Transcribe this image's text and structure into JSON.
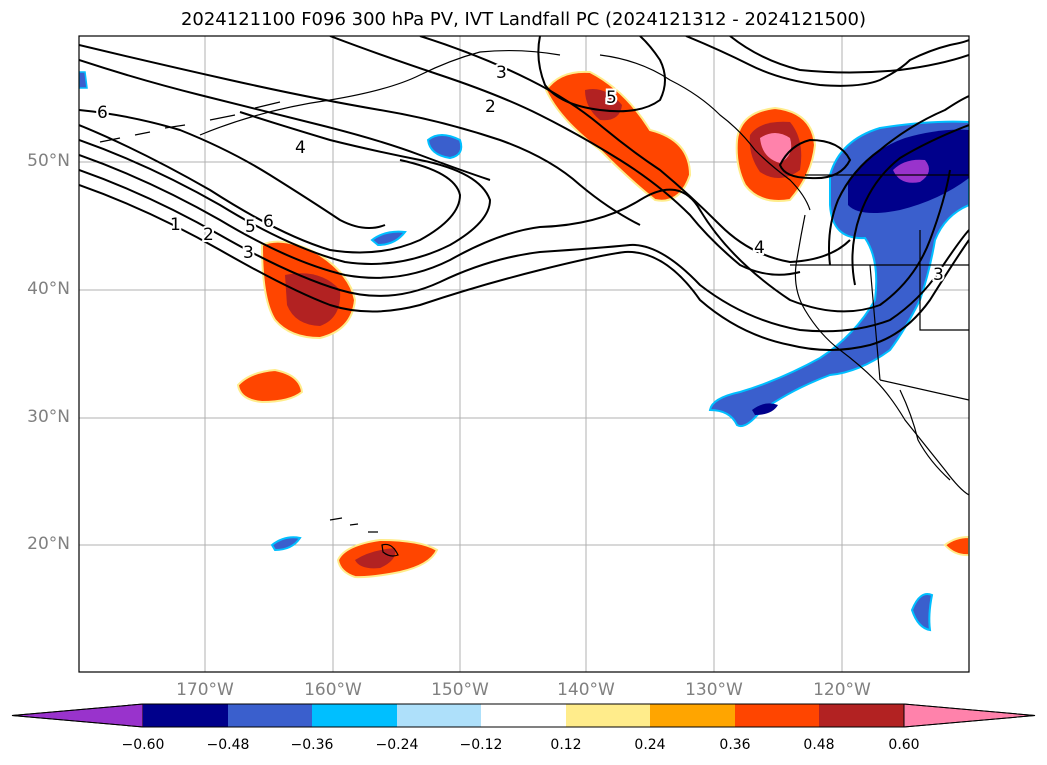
{
  "title": "2024121100 F096 300 hPa PV, IVT Landfall PC (2024121312 - 2024121500)",
  "lat_labels": [
    "50°N",
    "40°N",
    "30°N",
    "20°N"
  ],
  "lon_labels": [
    "170°W",
    "160°W",
    "150°W",
    "140°W",
    "130°W",
    "120°W"
  ],
  "contour_labels": [
    "6",
    "4",
    "1",
    "2",
    "5",
    "6",
    "3",
    "3",
    "2",
    "5",
    "4",
    "3"
  ],
  "colorbar": {
    "ticks": [
      "−0.60",
      "−0.48",
      "−0.36",
      "−0.24",
      "−0.12",
      "0.12",
      "0.24",
      "0.36",
      "0.48",
      "0.60"
    ],
    "colors": [
      "#9933cc",
      "#00008b",
      "#3a5fcd",
      "#00bfff",
      "#aee0fa",
      "#ffffff",
      "#ffec8b",
      "#ffa500",
      "#ff4500",
      "#b22222",
      "#ff82ab"
    ]
  }
}
